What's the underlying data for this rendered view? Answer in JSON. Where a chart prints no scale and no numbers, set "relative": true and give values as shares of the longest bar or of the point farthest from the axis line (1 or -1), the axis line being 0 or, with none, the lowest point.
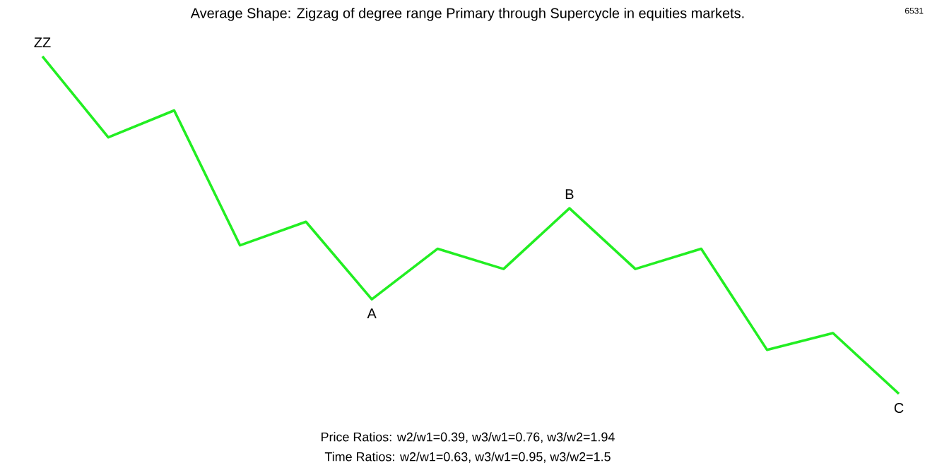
{
  "chart_data": {
    "type": "line",
    "title": "Average Shape: Zigzag of degree range Primary through Supercycle in equities markets.",
    "relative": true,
    "categories": [
      null,
      null,
      null,
      null,
      null,
      null,
      null,
      null,
      null,
      null,
      null,
      null,
      null,
      null
    ],
    "series": [
      {
        "color": "#22ee22",
        "values": [
          1,
          0.76,
          0.84,
          0.44,
          0.51,
          0.28,
          0.43,
          0.37,
          0.55,
          0.37,
          0.43,
          0.13,
          0.18,
          0
        ]
      }
    ],
    "annotations": [
      "6531",
      "Price Ratios: w2/w1=0.39, w3/w1=0.76, w3/w2=1.94",
      "Time Ratios: w2/w1=0.63, w3/w1=0.95, w3/w2=1.5",
      {
        "text": "ZZ",
        "y": 1
      },
      {
        "text": "A",
        "y": 0.28
      },
      {
        "text": "B",
        "y": 0.55
      },
      {
        "text": "C",
        "y": 0
      }
    ]
  }
}
